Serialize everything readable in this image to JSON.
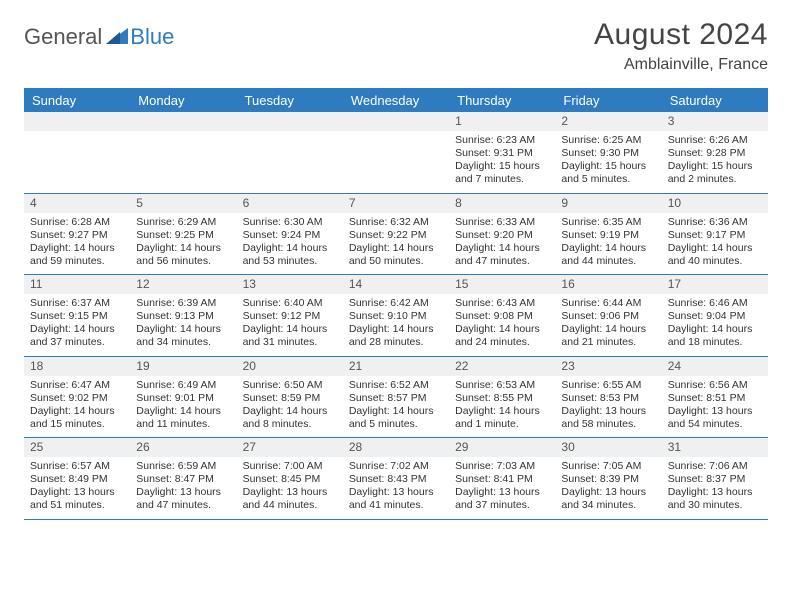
{
  "logo": {
    "general": "General",
    "blue": "Blue"
  },
  "title": {
    "month": "August 2024",
    "location": "Amblainville, France"
  },
  "colors": {
    "accent": "#2f7bbf",
    "headerText": "#ffffff",
    "cellHeader": "#eef0f1",
    "border": "#2f7bbf"
  },
  "dayHeaders": [
    "Sunday",
    "Monday",
    "Tuesday",
    "Wednesday",
    "Thursday",
    "Friday",
    "Saturday"
  ],
  "weeks": [
    [
      {
        "num": "",
        "lines": []
      },
      {
        "num": "",
        "lines": []
      },
      {
        "num": "",
        "lines": []
      },
      {
        "num": "",
        "lines": []
      },
      {
        "num": "1",
        "lines": [
          "Sunrise: 6:23 AM",
          "Sunset: 9:31 PM",
          "Daylight: 15 hours",
          "and 7 minutes."
        ]
      },
      {
        "num": "2",
        "lines": [
          "Sunrise: 6:25 AM",
          "Sunset: 9:30 PM",
          "Daylight: 15 hours",
          "and 5 minutes."
        ]
      },
      {
        "num": "3",
        "lines": [
          "Sunrise: 6:26 AM",
          "Sunset: 9:28 PM",
          "Daylight: 15 hours",
          "and 2 minutes."
        ]
      }
    ],
    [
      {
        "num": "4",
        "lines": [
          "Sunrise: 6:28 AM",
          "Sunset: 9:27 PM",
          "Daylight: 14 hours",
          "and 59 minutes."
        ]
      },
      {
        "num": "5",
        "lines": [
          "Sunrise: 6:29 AM",
          "Sunset: 9:25 PM",
          "Daylight: 14 hours",
          "and 56 minutes."
        ]
      },
      {
        "num": "6",
        "lines": [
          "Sunrise: 6:30 AM",
          "Sunset: 9:24 PM",
          "Daylight: 14 hours",
          "and 53 minutes."
        ]
      },
      {
        "num": "7",
        "lines": [
          "Sunrise: 6:32 AM",
          "Sunset: 9:22 PM",
          "Daylight: 14 hours",
          "and 50 minutes."
        ]
      },
      {
        "num": "8",
        "lines": [
          "Sunrise: 6:33 AM",
          "Sunset: 9:20 PM",
          "Daylight: 14 hours",
          "and 47 minutes."
        ]
      },
      {
        "num": "9",
        "lines": [
          "Sunrise: 6:35 AM",
          "Sunset: 9:19 PM",
          "Daylight: 14 hours",
          "and 44 minutes."
        ]
      },
      {
        "num": "10",
        "lines": [
          "Sunrise: 6:36 AM",
          "Sunset: 9:17 PM",
          "Daylight: 14 hours",
          "and 40 minutes."
        ]
      }
    ],
    [
      {
        "num": "11",
        "lines": [
          "Sunrise: 6:37 AM",
          "Sunset: 9:15 PM",
          "Daylight: 14 hours",
          "and 37 minutes."
        ]
      },
      {
        "num": "12",
        "lines": [
          "Sunrise: 6:39 AM",
          "Sunset: 9:13 PM",
          "Daylight: 14 hours",
          "and 34 minutes."
        ]
      },
      {
        "num": "13",
        "lines": [
          "Sunrise: 6:40 AM",
          "Sunset: 9:12 PM",
          "Daylight: 14 hours",
          "and 31 minutes."
        ]
      },
      {
        "num": "14",
        "lines": [
          "Sunrise: 6:42 AM",
          "Sunset: 9:10 PM",
          "Daylight: 14 hours",
          "and 28 minutes."
        ]
      },
      {
        "num": "15",
        "lines": [
          "Sunrise: 6:43 AM",
          "Sunset: 9:08 PM",
          "Daylight: 14 hours",
          "and 24 minutes."
        ]
      },
      {
        "num": "16",
        "lines": [
          "Sunrise: 6:44 AM",
          "Sunset: 9:06 PM",
          "Daylight: 14 hours",
          "and 21 minutes."
        ]
      },
      {
        "num": "17",
        "lines": [
          "Sunrise: 6:46 AM",
          "Sunset: 9:04 PM",
          "Daylight: 14 hours",
          "and 18 minutes."
        ]
      }
    ],
    [
      {
        "num": "18",
        "lines": [
          "Sunrise: 6:47 AM",
          "Sunset: 9:02 PM",
          "Daylight: 14 hours",
          "and 15 minutes."
        ]
      },
      {
        "num": "19",
        "lines": [
          "Sunrise: 6:49 AM",
          "Sunset: 9:01 PM",
          "Daylight: 14 hours",
          "and 11 minutes."
        ]
      },
      {
        "num": "20",
        "lines": [
          "Sunrise: 6:50 AM",
          "Sunset: 8:59 PM",
          "Daylight: 14 hours",
          "and 8 minutes."
        ]
      },
      {
        "num": "21",
        "lines": [
          "Sunrise: 6:52 AM",
          "Sunset: 8:57 PM",
          "Daylight: 14 hours",
          "and 5 minutes."
        ]
      },
      {
        "num": "22",
        "lines": [
          "Sunrise: 6:53 AM",
          "Sunset: 8:55 PM",
          "Daylight: 14 hours",
          "and 1 minute."
        ]
      },
      {
        "num": "23",
        "lines": [
          "Sunrise: 6:55 AM",
          "Sunset: 8:53 PM",
          "Daylight: 13 hours",
          "and 58 minutes."
        ]
      },
      {
        "num": "24",
        "lines": [
          "Sunrise: 6:56 AM",
          "Sunset: 8:51 PM",
          "Daylight: 13 hours",
          "and 54 minutes."
        ]
      }
    ],
    [
      {
        "num": "25",
        "lines": [
          "Sunrise: 6:57 AM",
          "Sunset: 8:49 PM",
          "Daylight: 13 hours",
          "and 51 minutes."
        ]
      },
      {
        "num": "26",
        "lines": [
          "Sunrise: 6:59 AM",
          "Sunset: 8:47 PM",
          "Daylight: 13 hours",
          "and 47 minutes."
        ]
      },
      {
        "num": "27",
        "lines": [
          "Sunrise: 7:00 AM",
          "Sunset: 8:45 PM",
          "Daylight: 13 hours",
          "and 44 minutes."
        ]
      },
      {
        "num": "28",
        "lines": [
          "Sunrise: 7:02 AM",
          "Sunset: 8:43 PM",
          "Daylight: 13 hours",
          "and 41 minutes."
        ]
      },
      {
        "num": "29",
        "lines": [
          "Sunrise: 7:03 AM",
          "Sunset: 8:41 PM",
          "Daylight: 13 hours",
          "and 37 minutes."
        ]
      },
      {
        "num": "30",
        "lines": [
          "Sunrise: 7:05 AM",
          "Sunset: 8:39 PM",
          "Daylight: 13 hours",
          "and 34 minutes."
        ]
      },
      {
        "num": "31",
        "lines": [
          "Sunrise: 7:06 AM",
          "Sunset: 8:37 PM",
          "Daylight: 13 hours",
          "and 30 minutes."
        ]
      }
    ]
  ]
}
